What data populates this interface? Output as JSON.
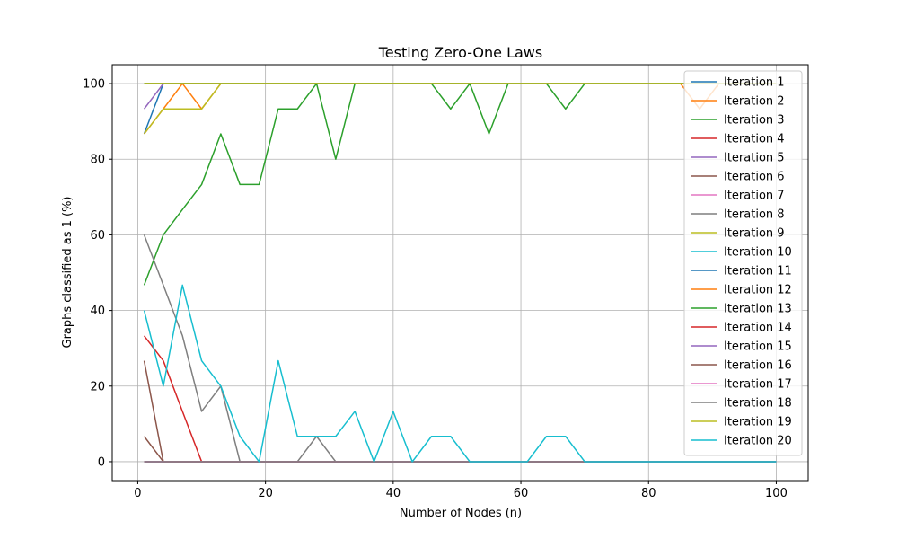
{
  "chart_data": {
    "type": "line",
    "title": "Testing Zero-One Laws",
    "xlabel": "Number of Nodes (n)",
    "ylabel": "Graphs classified as 1 (%)",
    "xlim": [
      -4,
      105
    ],
    "ylim": [
      -5,
      105
    ],
    "xticks": [
      0,
      20,
      40,
      60,
      80,
      100
    ],
    "yticks": [
      0,
      20,
      40,
      60,
      80,
      100
    ],
    "grid": true,
    "legend_position": "top-right",
    "x": [
      1,
      4,
      7,
      10,
      13,
      16,
      19,
      22,
      25,
      28,
      31,
      34,
      37,
      40,
      43,
      46,
      49,
      52,
      55,
      58,
      61,
      64,
      67,
      70,
      73,
      76,
      79,
      82,
      85,
      88,
      91,
      94,
      97,
      100
    ],
    "series": [
      {
        "name": "Iteration 1",
        "color": "#1f77b4",
        "values": [
          86.7,
          100,
          100,
          100,
          100,
          100,
          100,
          100,
          100,
          100,
          100,
          100,
          100,
          100,
          100,
          100,
          100,
          100,
          100,
          100,
          100,
          100,
          100,
          100,
          100,
          100,
          100,
          100,
          100,
          100,
          100,
          100,
          100,
          100
        ]
      },
      {
        "name": "Iteration 2",
        "color": "#ff7f0e",
        "values": [
          86.7,
          93.3,
          100,
          93.3,
          100,
          100,
          100,
          100,
          100,
          100,
          100,
          100,
          100,
          100,
          100,
          100,
          100,
          100,
          100,
          100,
          100,
          100,
          100,
          100,
          100,
          100,
          100,
          100,
          100,
          93.3,
          100,
          100,
          100,
          100
        ]
      },
      {
        "name": "Iteration 3",
        "color": "#2ca02c",
        "values": [
          46.7,
          60,
          66.7,
          73.3,
          86.7,
          73.3,
          73.3,
          93.3,
          93.3,
          100,
          80,
          100,
          100,
          100,
          100,
          100,
          93.3,
          100,
          86.7,
          100,
          100,
          100,
          93.3,
          100,
          100,
          100,
          100,
          100,
          100,
          100,
          100,
          100,
          100,
          100
        ]
      },
      {
        "name": "Iteration 4",
        "color": "#d62728",
        "values": [
          33.3,
          26.7,
          13.3,
          0,
          0,
          0,
          0,
          0,
          0,
          0,
          0,
          0,
          0,
          0,
          0,
          0,
          0,
          0,
          0,
          0,
          0,
          0,
          0,
          0,
          0,
          0,
          0,
          0,
          0,
          0,
          0,
          0,
          0,
          0
        ]
      },
      {
        "name": "Iteration 5",
        "color": "#9467bd",
        "values": [
          93.3,
          100,
          100,
          100,
          100,
          100,
          100,
          100,
          100,
          100,
          100,
          100,
          100,
          100,
          100,
          100,
          100,
          100,
          100,
          100,
          100,
          100,
          100,
          100,
          100,
          100,
          100,
          100,
          100,
          100,
          100,
          100,
          100,
          100
        ]
      },
      {
        "name": "Iteration 6",
        "color": "#8c564b",
        "values": [
          26.7,
          0,
          0,
          0,
          0,
          0,
          0,
          0,
          0,
          0,
          0,
          0,
          0,
          0,
          0,
          0,
          0,
          0,
          0,
          0,
          0,
          0,
          0,
          0,
          0,
          0,
          0,
          0,
          0,
          0,
          0,
          0,
          0,
          0
        ]
      },
      {
        "name": "Iteration 7",
        "color": "#e377c2",
        "values": [
          0,
          0,
          0,
          0,
          0,
          0,
          0,
          0,
          0,
          0,
          0,
          0,
          0,
          0,
          0,
          0,
          0,
          0,
          0,
          0,
          0,
          0,
          0,
          0,
          0,
          0,
          0,
          0,
          0,
          0,
          0,
          0,
          0,
          0
        ]
      },
      {
        "name": "Iteration 8",
        "color": "#7f7f7f",
        "values": [
          60,
          46.7,
          33.3,
          13.3,
          20,
          0,
          0,
          0,
          0,
          6.7,
          0,
          0,
          0,
          0,
          0,
          0,
          0,
          0,
          0,
          0,
          0,
          0,
          0,
          0,
          0,
          0,
          0,
          0,
          0,
          0,
          0,
          0,
          0,
          0
        ]
      },
      {
        "name": "Iteration 9",
        "color": "#bcbd22",
        "values": [
          86.7,
          93.3,
          93.3,
          93.3,
          100,
          100,
          100,
          100,
          100,
          100,
          100,
          100,
          100,
          100,
          100,
          100,
          100,
          100,
          100,
          100,
          100,
          100,
          100,
          100,
          100,
          100,
          100,
          100,
          100,
          100,
          100,
          100,
          100,
          100
        ]
      },
      {
        "name": "Iteration 10",
        "color": "#17becf",
        "values": [
          100,
          100,
          100,
          100,
          100,
          100,
          100,
          100,
          100,
          100,
          100,
          100,
          100,
          100,
          100,
          100,
          100,
          100,
          100,
          100,
          100,
          100,
          100,
          100,
          100,
          100,
          100,
          100,
          100,
          100,
          100,
          100,
          100,
          100
        ]
      },
      {
        "name": "Iteration 11",
        "color": "#1f77b4",
        "values": [
          100,
          100,
          100,
          100,
          100,
          100,
          100,
          100,
          100,
          100,
          100,
          100,
          100,
          100,
          100,
          100,
          100,
          100,
          100,
          100,
          100,
          100,
          100,
          100,
          100,
          100,
          100,
          100,
          100,
          100,
          100,
          100,
          100,
          100
        ]
      },
      {
        "name": "Iteration 12",
        "color": "#ff7f0e",
        "values": [
          100,
          100,
          100,
          100,
          100,
          100,
          100,
          100,
          100,
          100,
          100,
          100,
          100,
          100,
          100,
          100,
          100,
          100,
          100,
          100,
          100,
          100,
          100,
          100,
          100,
          100,
          100,
          100,
          100,
          100,
          100,
          100,
          100,
          100
        ]
      },
      {
        "name": "Iteration 13",
        "color": "#2ca02c",
        "values": [
          100,
          100,
          100,
          100,
          100,
          100,
          100,
          100,
          100,
          100,
          100,
          100,
          100,
          100,
          100,
          100,
          100,
          100,
          100,
          100,
          100,
          100,
          100,
          100,
          100,
          100,
          100,
          100,
          100,
          100,
          100,
          100,
          100,
          100
        ]
      },
      {
        "name": "Iteration 14",
        "color": "#d62728",
        "values": [
          0,
          0,
          0,
          0,
          0,
          0,
          0,
          0,
          0,
          0,
          0,
          0,
          0,
          0,
          0,
          0,
          0,
          0,
          0,
          0,
          0,
          0,
          0,
          0,
          0,
          0,
          0,
          0,
          0,
          0,
          0,
          0,
          0,
          0
        ]
      },
      {
        "name": "Iteration 15",
        "color": "#9467bd",
        "values": [
          0,
          0,
          0,
          0,
          0,
          0,
          0,
          0,
          0,
          0,
          0,
          0,
          0,
          0,
          0,
          0,
          0,
          0,
          0,
          0,
          0,
          0,
          0,
          0,
          0,
          0,
          0,
          0,
          0,
          0,
          0,
          0,
          0,
          0
        ]
      },
      {
        "name": "Iteration 16",
        "color": "#8c564b",
        "values": [
          6.7,
          0,
          0,
          0,
          0,
          0,
          0,
          0,
          0,
          0,
          0,
          0,
          0,
          0,
          0,
          0,
          0,
          0,
          0,
          0,
          0,
          0,
          0,
          0,
          0,
          0,
          0,
          0,
          0,
          0,
          0,
          0,
          0,
          0
        ]
      },
      {
        "name": "Iteration 17",
        "color": "#e377c2",
        "values": [
          0,
          0,
          0,
          0,
          0,
          0,
          0,
          0,
          0,
          0,
          0,
          0,
          0,
          0,
          0,
          0,
          0,
          0,
          0,
          0,
          0,
          0,
          0,
          0,
          0,
          0,
          0,
          0,
          0,
          0,
          0,
          0,
          0,
          0
        ]
      },
      {
        "name": "Iteration 18",
        "color": "#7f7f7f",
        "values": [
          0,
          0,
          0,
          0,
          0,
          0,
          0,
          0,
          0,
          0,
          0,
          0,
          0,
          0,
          0,
          0,
          0,
          0,
          0,
          0,
          0,
          0,
          0,
          0,
          0,
          0,
          0,
          0,
          0,
          0,
          0,
          0,
          0,
          0
        ]
      },
      {
        "name": "Iteration 19",
        "color": "#bcbd22",
        "values": [
          100,
          100,
          100,
          100,
          100,
          100,
          100,
          100,
          100,
          100,
          100,
          100,
          100,
          100,
          100,
          100,
          100,
          100,
          100,
          100,
          100,
          100,
          100,
          100,
          100,
          100,
          100,
          100,
          100,
          100,
          100,
          100,
          100,
          100
        ]
      },
      {
        "name": "Iteration 20",
        "color": "#17becf",
        "values": [
          40,
          20,
          46.7,
          26.7,
          20,
          6.7,
          0,
          26.7,
          6.7,
          6.7,
          6.7,
          13.3,
          0,
          13.3,
          0,
          6.7,
          6.7,
          0,
          0,
          0,
          0,
          6.7,
          6.7,
          0,
          0,
          0,
          0,
          0,
          0,
          0,
          0,
          0,
          0,
          0
        ]
      }
    ]
  }
}
